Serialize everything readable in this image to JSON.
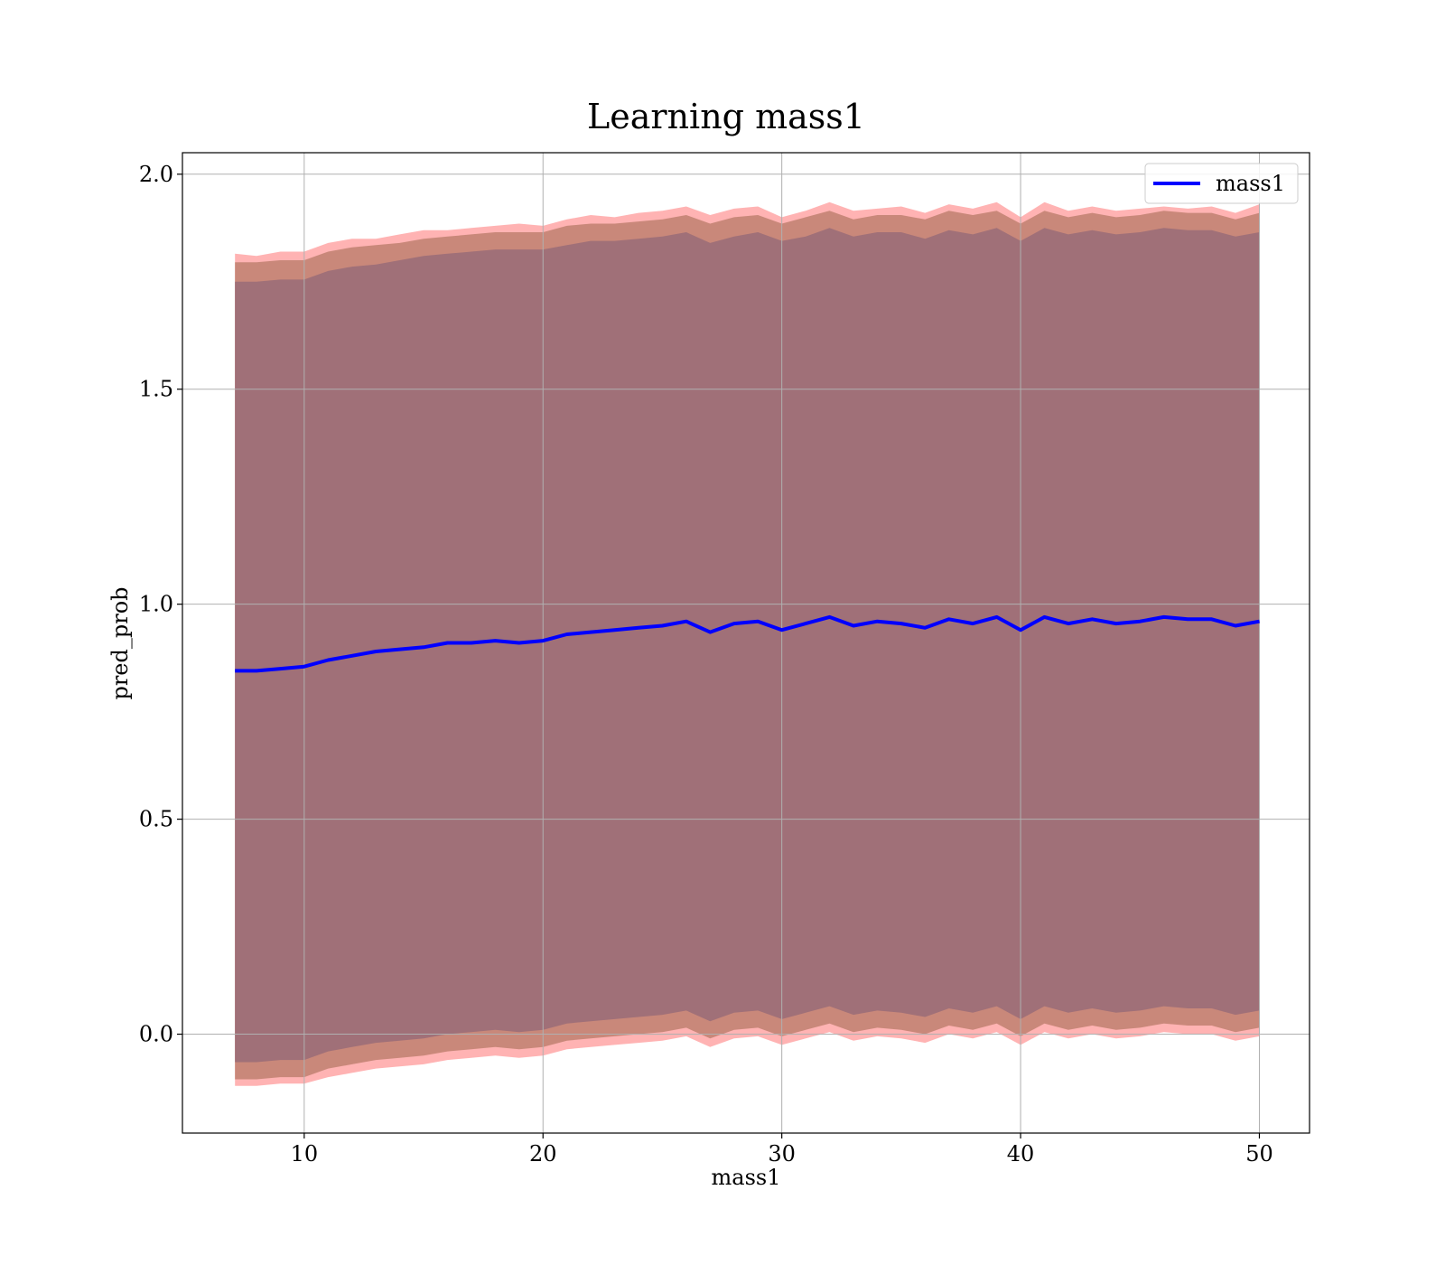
{
  "chart_data": {
    "type": "line",
    "title": "Learning mass1",
    "xlabel": "mass1",
    "ylabel": "pred_prob",
    "xlim": [
      4.9,
      52.1
    ],
    "ylim": [
      -0.23,
      2.05
    ],
    "xticks": [
      10,
      20,
      30,
      40,
      50
    ],
    "yticks": [
      0.0,
      0.5,
      1.0,
      1.5,
      2.0
    ],
    "xtick_labels": [
      "10",
      "20",
      "30",
      "40",
      "50"
    ],
    "ytick_labels": [
      "0.0",
      "0.5",
      "1.0",
      "1.5",
      "2.0"
    ],
    "grid": true,
    "legend": {
      "position": "top-right",
      "entries": [
        "mass1"
      ]
    },
    "colors": {
      "line": "#0000ff",
      "outer_band": "#ff8080",
      "middle_band": "#c08070",
      "inner_band": "#a07078",
      "grid": "#b0b0b0"
    },
    "series": [
      {
        "name": "mass1",
        "x": [
          7.1,
          8,
          9,
          10,
          11,
          12,
          13,
          14,
          15,
          16,
          17,
          18,
          19,
          20,
          21,
          22,
          23,
          24,
          25,
          26,
          27,
          28,
          29,
          30,
          31,
          32,
          33,
          34,
          35,
          36,
          37,
          38,
          39,
          40,
          41,
          42,
          43,
          44,
          45,
          46,
          47,
          48,
          49,
          50
        ],
        "values": [
          0.845,
          0.845,
          0.85,
          0.855,
          0.87,
          0.88,
          0.89,
          0.895,
          0.9,
          0.91,
          0.91,
          0.915,
          0.91,
          0.915,
          0.93,
          0.935,
          0.94,
          0.945,
          0.95,
          0.96,
          0.935,
          0.955,
          0.96,
          0.94,
          0.955,
          0.97,
          0.95,
          0.96,
          0.955,
          0.945,
          0.965,
          0.955,
          0.97,
          0.94,
          0.97,
          0.955,
          0.965,
          0.955,
          0.96,
          0.97,
          0.965,
          0.965,
          0.95,
          0.96
        ]
      }
    ],
    "bands": [
      {
        "level": "outer",
        "x": [
          7.1,
          8,
          9,
          10,
          11,
          12,
          13,
          14,
          15,
          16,
          17,
          18,
          19,
          20,
          21,
          22,
          23,
          24,
          25,
          26,
          27,
          28,
          29,
          30,
          31,
          32,
          33,
          34,
          35,
          36,
          37,
          38,
          39,
          40,
          41,
          42,
          43,
          44,
          45,
          46,
          47,
          48,
          49,
          50
        ],
        "upper": [
          1.815,
          1.81,
          1.82,
          1.82,
          1.84,
          1.85,
          1.85,
          1.86,
          1.87,
          1.87,
          1.875,
          1.88,
          1.885,
          1.88,
          1.895,
          1.905,
          1.9,
          1.91,
          1.915,
          1.925,
          1.905,
          1.92,
          1.925,
          1.9,
          1.915,
          1.935,
          1.915,
          1.92,
          1.925,
          1.91,
          1.93,
          1.92,
          1.935,
          1.9,
          1.935,
          1.915,
          1.925,
          1.915,
          1.92,
          1.925,
          1.92,
          1.925,
          1.91,
          1.93
        ],
        "lower": [
          -0.12,
          -0.12,
          -0.115,
          -0.115,
          -0.1,
          -0.09,
          -0.08,
          -0.075,
          -0.07,
          -0.06,
          -0.055,
          -0.05,
          -0.055,
          -0.05,
          -0.035,
          -0.03,
          -0.025,
          -0.02,
          -0.015,
          -0.005,
          -0.03,
          -0.01,
          -0.005,
          -0.025,
          -0.01,
          0.005,
          -0.015,
          -0.005,
          -0.01,
          -0.02,
          0.0,
          -0.01,
          0.005,
          -0.025,
          0.005,
          -0.01,
          0.0,
          -0.01,
          -0.005,
          0.005,
          0.0,
          0.0,
          -0.015,
          -0.005
        ]
      },
      {
        "level": "middle",
        "x": [
          7.1,
          8,
          9,
          10,
          11,
          12,
          13,
          14,
          15,
          16,
          17,
          18,
          19,
          20,
          21,
          22,
          23,
          24,
          25,
          26,
          27,
          28,
          29,
          30,
          31,
          32,
          33,
          34,
          35,
          36,
          37,
          38,
          39,
          40,
          41,
          42,
          43,
          44,
          45,
          46,
          47,
          48,
          49,
          50
        ],
        "upper": [
          1.795,
          1.795,
          1.8,
          1.8,
          1.82,
          1.83,
          1.835,
          1.84,
          1.85,
          1.855,
          1.86,
          1.865,
          1.865,
          1.865,
          1.88,
          1.885,
          1.885,
          1.89,
          1.895,
          1.905,
          1.885,
          1.9,
          1.905,
          1.885,
          1.9,
          1.915,
          1.895,
          1.905,
          1.905,
          1.895,
          1.915,
          1.905,
          1.915,
          1.885,
          1.915,
          1.9,
          1.91,
          1.9,
          1.905,
          1.915,
          1.91,
          1.91,
          1.895,
          1.91
        ],
        "lower": [
          -0.105,
          -0.105,
          -0.1,
          -0.1,
          -0.08,
          -0.07,
          -0.06,
          -0.055,
          -0.05,
          -0.04,
          -0.035,
          -0.03,
          -0.035,
          -0.03,
          -0.015,
          -0.01,
          -0.005,
          0.0,
          0.005,
          0.015,
          -0.01,
          0.01,
          0.015,
          -0.005,
          0.01,
          0.025,
          0.005,
          0.015,
          0.01,
          0.0,
          0.02,
          0.01,
          0.025,
          -0.005,
          0.025,
          0.01,
          0.02,
          0.01,
          0.015,
          0.025,
          0.02,
          0.02,
          0.005,
          0.015
        ]
      },
      {
        "level": "inner",
        "x": [
          7.1,
          8,
          9,
          10,
          11,
          12,
          13,
          14,
          15,
          16,
          17,
          18,
          19,
          20,
          21,
          22,
          23,
          24,
          25,
          26,
          27,
          28,
          29,
          30,
          31,
          32,
          33,
          34,
          35,
          36,
          37,
          38,
          39,
          40,
          41,
          42,
          43,
          44,
          45,
          46,
          47,
          48,
          49,
          50
        ],
        "upper": [
          1.75,
          1.75,
          1.755,
          1.755,
          1.775,
          1.785,
          1.79,
          1.8,
          1.81,
          1.815,
          1.82,
          1.825,
          1.825,
          1.825,
          1.835,
          1.845,
          1.845,
          1.85,
          1.855,
          1.865,
          1.84,
          1.855,
          1.865,
          1.845,
          1.855,
          1.875,
          1.855,
          1.865,
          1.865,
          1.85,
          1.87,
          1.86,
          1.875,
          1.845,
          1.875,
          1.86,
          1.87,
          1.86,
          1.865,
          1.875,
          1.87,
          1.87,
          1.855,
          1.865
        ],
        "lower": [
          -0.065,
          -0.065,
          -0.06,
          -0.06,
          -0.04,
          -0.03,
          -0.02,
          -0.015,
          -0.01,
          0.0,
          0.005,
          0.01,
          0.005,
          0.01,
          0.025,
          0.03,
          0.035,
          0.04,
          0.045,
          0.055,
          0.03,
          0.05,
          0.055,
          0.035,
          0.05,
          0.065,
          0.045,
          0.055,
          0.05,
          0.04,
          0.06,
          0.05,
          0.065,
          0.035,
          0.065,
          0.05,
          0.06,
          0.05,
          0.055,
          0.065,
          0.06,
          0.06,
          0.045,
          0.055
        ]
      }
    ]
  }
}
